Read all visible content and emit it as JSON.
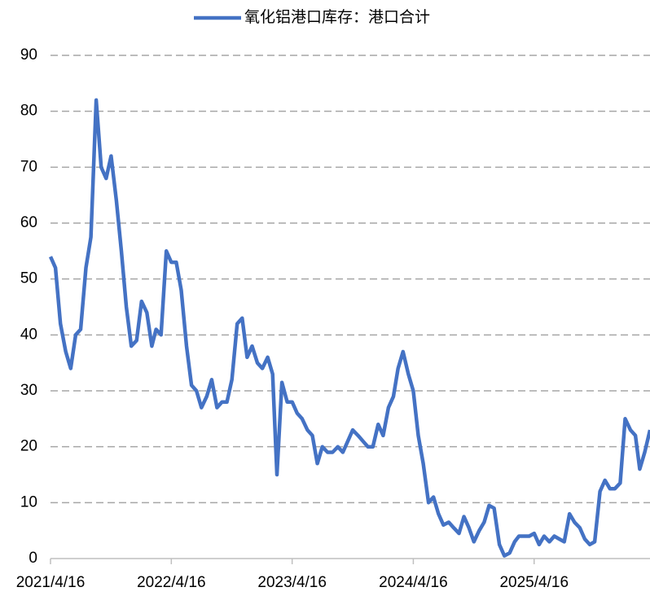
{
  "chart_data": {
    "type": "line",
    "series": [
      {
        "name": "氧化铝港口库存：港口合计",
        "color": "#4472c4",
        "values": [
          54,
          52,
          42,
          37,
          34,
          40,
          41,
          52,
          57.5,
          82,
          70,
          68,
          72,
          64,
          55,
          45,
          38,
          39,
          46,
          44,
          38,
          41,
          40,
          55,
          53,
          53,
          48,
          38,
          31,
          30,
          27,
          29,
          32,
          27,
          28,
          28,
          32,
          42,
          43,
          36,
          38,
          35,
          34,
          36,
          33,
          15,
          31.5,
          28,
          28,
          26,
          25,
          23,
          22,
          17,
          20,
          19,
          19,
          20,
          19,
          21,
          23,
          22,
          21,
          20,
          20,
          24,
          22,
          27,
          29,
          34,
          37,
          33,
          30,
          22,
          17,
          10,
          11,
          8,
          6,
          6.5,
          5.5,
          4.5,
          7.5,
          5.5,
          3,
          5,
          6.5,
          9.5,
          9,
          2.5,
          0.5,
          1,
          3,
          4,
          4,
          4,
          4.5,
          2.5,
          4,
          3,
          4,
          3.5,
          3,
          8,
          6.5,
          5.5,
          3.5,
          2.5,
          3,
          12,
          14,
          12.5,
          12.5,
          13.5,
          25,
          23,
          22,
          16,
          19,
          23
        ]
      }
    ],
    "x": [
      "2021/4/16",
      "2021/5/1",
      "2021/5/16",
      "2021/6/1",
      "2021/6/16",
      "2021/7/1",
      "2021/7/16",
      "2021/8/1",
      "2021/8/16",
      "2021/9/1",
      "2021/9/16",
      "2021/10/1",
      "2021/10/16",
      "2021/11/1",
      "2021/11/16",
      "2021/12/1",
      "2021/12/16",
      "2022/1/1",
      "2022/1/16",
      "2022/2/1",
      "2022/2/16",
      "2022/3/1",
      "2022/3/16",
      "2022/4/1",
      "2022/4/16",
      "2022/5/1",
      "2022/5/16",
      "2022/6/1",
      "2022/6/16",
      "2022/7/1",
      "2022/7/16",
      "2022/8/1",
      "2022/8/16",
      "2022/9/1",
      "2022/9/16",
      "2022/10/1",
      "2022/10/16",
      "2022/11/1",
      "2022/11/16",
      "2022/12/1",
      "2022/12/16",
      "2023/1/1",
      "2023/1/16",
      "2023/2/1",
      "2023/2/16",
      "2023/3/1",
      "2023/3/16",
      "2023/4/1",
      "2023/4/16",
      "2023/5/1",
      "2023/5/16",
      "2023/6/1",
      "2023/6/16",
      "2023/7/1",
      "2023/7/16",
      "2023/8/1",
      "2023/8/16",
      "2023/9/1",
      "2023/9/16",
      "2023/10/1",
      "2023/10/16",
      "2023/11/1",
      "2023/11/16",
      "2023/12/1",
      "2023/12/16",
      "2024/1/1",
      "2024/1/16",
      "2024/2/1",
      "2024/2/16",
      "2024/3/1",
      "2024/3/16",
      "2024/4/1",
      "2024/4/16",
      "2024/5/1",
      "2024/5/16",
      "2024/6/1",
      "2024/6/16",
      "2024/7/1",
      "2024/7/16",
      "2024/8/1",
      "2024/8/16",
      "2024/9/1",
      "2024/9/16",
      "2024/10/1",
      "2024/10/16",
      "2024/11/1",
      "2024/11/16",
      "2024/12/1",
      "2024/12/16",
      "2025/1/1",
      "2025/1/16",
      "2025/2/1",
      "2025/2/16",
      "2025/3/1",
      "2025/3/16",
      "2025/4/1",
      "2025/4/16",
      "2025/5/1",
      "2025/5/16",
      "2025/6/1",
      "2025/6/16",
      "2025/7/1",
      "2025/7/16",
      "2025/8/1",
      "2025/8/16",
      "2025/9/1",
      "2025/9/16",
      "2025/10/1",
      "2025/10/16",
      "2025/11/1",
      "2025/11/16",
      "2025/12/1",
      "2025/12/16",
      "2026/1/1",
      "2026/1/16",
      "2026/2/1",
      "2026/2/16",
      "2026/3/1",
      "2026/3/16",
      "2026/4/1"
    ],
    "xlim": [
      "2021/4/16",
      "2026/4/1"
    ],
    "xticks": [
      "2021/4/16",
      "2022/4/16",
      "2023/4/16",
      "2024/4/16",
      "2025/4/16"
    ],
    "ylim": [
      0,
      90
    ],
    "yticks": [
      0,
      10,
      20,
      30,
      40,
      50,
      60,
      70,
      80,
      90
    ],
    "grid": true,
    "legend": "top"
  }
}
